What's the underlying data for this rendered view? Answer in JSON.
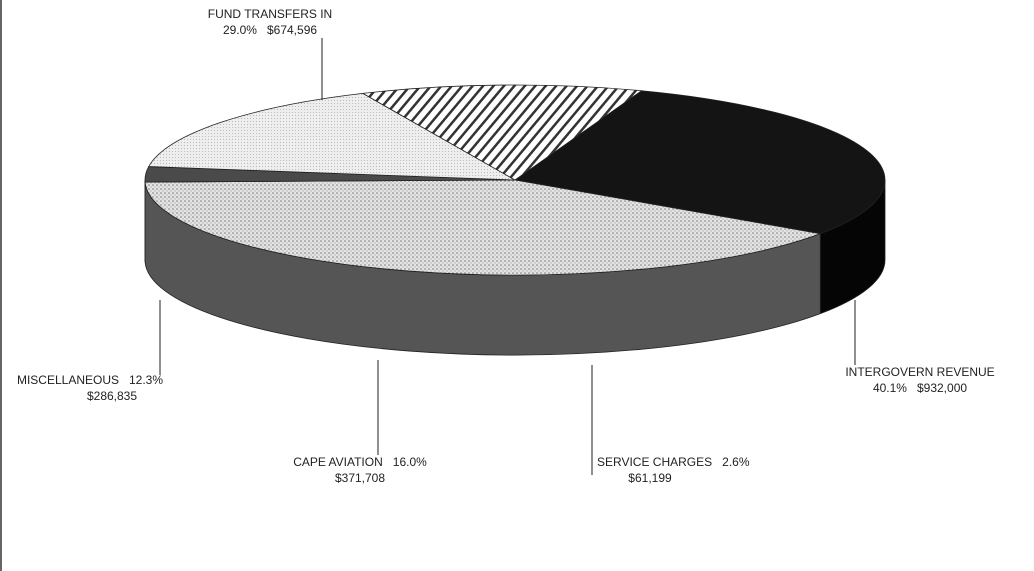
{
  "chart_data": {
    "type": "pie3d",
    "categories": [
      "FUND TRANSFERS IN",
      "INTERGOVERN REVENUE",
      "SERVICE CHARGES",
      "CAPE AVIATION",
      "MISCELLANEOUS"
    ],
    "values": [
      29.0,
      40.1,
      2.6,
      16.0,
      12.3
    ],
    "value_labels": [
      "29.0%",
      "40.1%",
      "2.6%",
      "16.0%",
      "12.3%"
    ],
    "amount_labels": [
      "$674,596",
      "$932,000",
      "$61,199",
      "$371,708",
      "$286,835"
    ],
    "colors": [
      "#141414",
      "url(#dots)",
      "#4a4a4a",
      "url(#light)",
      "url(#hatch)"
    ]
  }
}
